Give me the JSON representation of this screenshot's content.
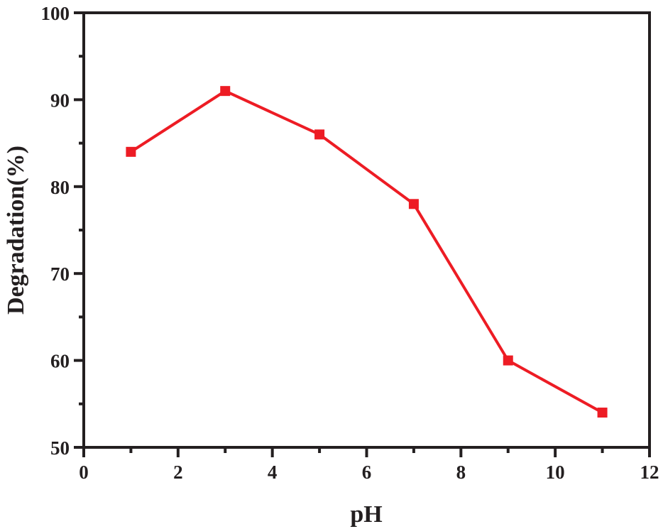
{
  "chart_data": {
    "type": "line",
    "title": "",
    "xlabel": "pH",
    "ylabel": "Degradation(%)",
    "xlim": [
      0,
      12
    ],
    "ylim": [
      50,
      100
    ],
    "xticks": [
      0,
      2,
      4,
      6,
      8,
      10,
      12
    ],
    "yticks": [
      50,
      60,
      70,
      80,
      90,
      100
    ],
    "grid": false,
    "legend": null,
    "series": [
      {
        "name": "Degradation",
        "color": "#ed1c24",
        "marker": "square",
        "x": [
          1,
          3,
          5,
          7,
          9,
          11
        ],
        "y": [
          84,
          91,
          86,
          78,
          60,
          54
        ]
      }
    ]
  },
  "colors": {
    "axis": "#231f20",
    "series": "#ed1c24",
    "background": "#ffffff"
  }
}
